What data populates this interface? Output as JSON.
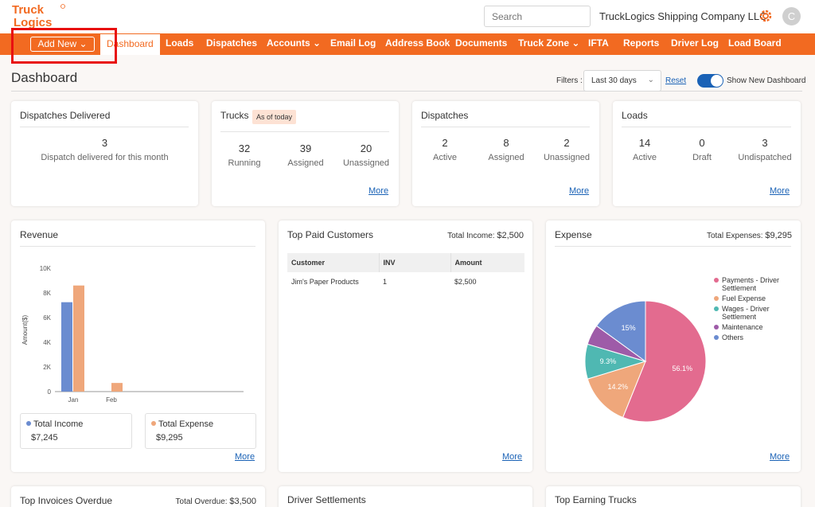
{
  "app": {
    "logo_text": "Truck Logics",
    "search_placeholder": "Search",
    "company_name": "TruckLogics Shipping Company LLC",
    "avatar_initial": "C"
  },
  "nav": {
    "add_new_label": "Add New",
    "items": [
      "Dashboard",
      "Loads",
      "Dispatches",
      "Accounts",
      "Email Log",
      "Address Book",
      "Documents",
      "Truck Zone",
      "IFTA",
      "Reports",
      "Driver Log",
      "Load Board"
    ],
    "active": "Dashboard"
  },
  "header": {
    "title": "Dashboard",
    "filters_label": "Filters :",
    "filter_value": "Last 30 days",
    "reset_label": "Reset",
    "toggle_label": "Show New Dashboard",
    "toggle_on": true
  },
  "cards": {
    "dispatches_delivered": {
      "title": "Dispatches Delivered",
      "value": "3",
      "caption": "Dispatch delivered for this month"
    },
    "trucks": {
      "title": "Trucks",
      "badge": "As of today",
      "stats": [
        {
          "value": "32",
          "label": "Running"
        },
        {
          "value": "39",
          "label": "Assigned"
        },
        {
          "value": "20",
          "label": "Unassigned"
        }
      ],
      "more": "More"
    },
    "dispatches": {
      "title": "Dispatches",
      "stats": [
        {
          "value": "2",
          "label": "Active"
        },
        {
          "value": "8",
          "label": "Assigned"
        },
        {
          "value": "2",
          "label": "Unassigned"
        }
      ],
      "more": "More"
    },
    "loads": {
      "title": "Loads",
      "stats": [
        {
          "value": "14",
          "label": "Active"
        },
        {
          "value": "0",
          "label": "Draft"
        },
        {
          "value": "3",
          "label": "Undispatched"
        }
      ],
      "more": "More"
    }
  },
  "revenue": {
    "title": "Revenue",
    "total_income_label": "Total Income",
    "total_income_value": "$7,245",
    "total_expense_label": "Total Expense",
    "total_expense_value": "$9,295",
    "more": "More"
  },
  "top_paid_customers": {
    "title": "Top Paid Customers",
    "total_label": "Total Income: ",
    "total_value": "$2,500",
    "columns": [
      "Customer",
      "INV",
      "Amount"
    ],
    "rows": [
      [
        "Jim's Paper Products",
        "1",
        "$2,500"
      ]
    ],
    "more": "More"
  },
  "expense": {
    "title": "Expense",
    "total_label": "Total Expenses: ",
    "total_value": "$9,295",
    "more": "More"
  },
  "bottom_cards": {
    "invoices_overdue": {
      "title": "Top Invoices Overdue",
      "total_label": "Total Overdue: ",
      "total_value": "$3,500"
    },
    "driver_settlements": {
      "title": "Driver Settlements"
    },
    "earning_trucks": {
      "title": "Top Earning Trucks"
    }
  },
  "colors": {
    "brand_orange": "#f26a21",
    "link_blue": "#1a62b6",
    "income_bar": "#6b8cd0",
    "expense_bar": "#efa77b"
  },
  "chart_data": [
    {
      "type": "bar",
      "title": "Revenue",
      "categories": [
        "Jan",
        "Feb"
      ],
      "series": [
        {
          "name": "Total Income",
          "values": [
            7245,
            0
          ],
          "color": "#6b8cd0"
        },
        {
          "name": "Total Expense",
          "values": [
            8600,
            700
          ],
          "color": "#efa77b"
        }
      ],
      "ylabel": "Amount($)",
      "ylim": [
        0,
        10000
      ],
      "yticks": [
        "0",
        "2K",
        "4K",
        "6K",
        "8K",
        "10K"
      ],
      "grid": false
    },
    {
      "type": "pie",
      "title": "Expense",
      "labels": [
        "Payments - Driver Settlement",
        "Fuel Expense",
        "Wages - Driver Settlement",
        "Maintenance",
        "Others"
      ],
      "values": [
        56.1,
        14.2,
        9.3,
        5.4,
        15.0
      ],
      "value_labels": [
        "56.1%",
        "14.2%",
        "9.3%",
        "",
        "15%"
      ],
      "colors": [
        "#e36b8f",
        "#efa77b",
        "#4fb8b2",
        "#9e5ba8",
        "#6b8cd0"
      ],
      "legend": "right"
    }
  ]
}
